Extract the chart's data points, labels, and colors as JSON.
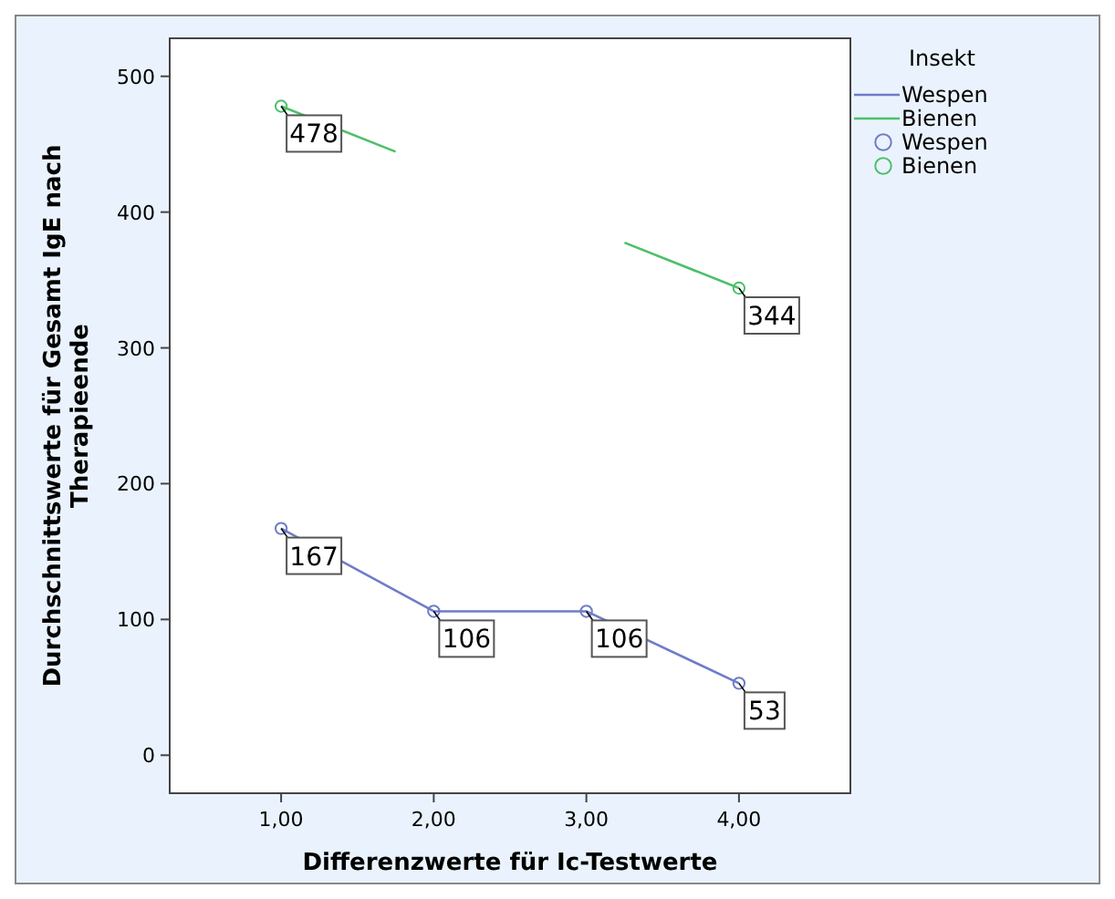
{
  "chart_data": {
    "type": "line",
    "xlabel": "Differenzwerte für Ic-Testwerte",
    "ylabel": "Durchschnittswerte für Gesamt IgE nach Therapieende",
    "legend_title": "Insekt",
    "x": [
      1,
      2,
      3,
      4
    ],
    "xlim": [
      0.27,
      4.73
    ],
    "xticks": [
      {
        "value": 1,
        "label": "1,00"
      },
      {
        "value": 2,
        "label": "2,00"
      },
      {
        "value": 3,
        "label": "3,00"
      },
      {
        "value": 4,
        "label": "4,00"
      }
    ],
    "ylim": [
      -28,
      528
    ],
    "yticks": [
      0,
      100,
      200,
      300,
      400,
      500
    ],
    "series": [
      {
        "name": "Wespen",
        "color": "#6f7cc8",
        "values": [
          167,
          106,
          106,
          53
        ]
      },
      {
        "name": "Bienen",
        "color": "#4cc06a",
        "values": [
          478,
          null,
          null,
          344
        ]
      }
    ],
    "marker": "circle",
    "data_labels": true,
    "legend": "right",
    "grid": false
  }
}
